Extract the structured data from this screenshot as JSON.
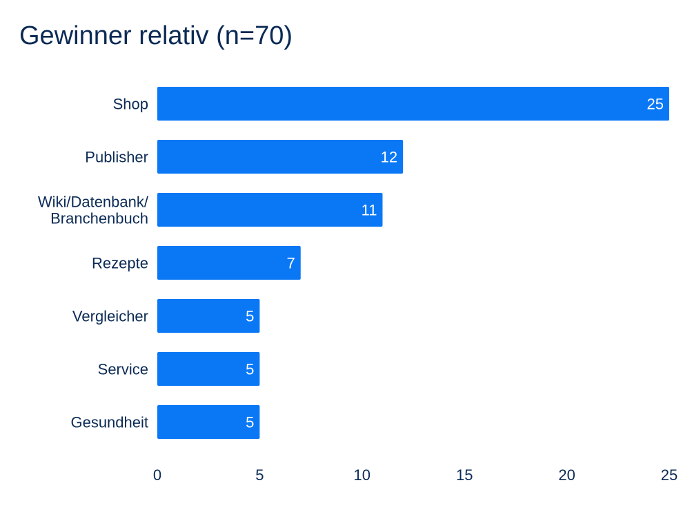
{
  "chart_data": {
    "type": "bar",
    "orientation": "horizontal",
    "title": "Gewinner relativ (n=70)",
    "categories": [
      [
        "Shop"
      ],
      [
        "Publisher"
      ],
      [
        "Wiki/Datenbank/",
        "Branchenbuch"
      ],
      [
        "Rezepte"
      ],
      [
        "Vergleicher"
      ],
      [
        "Service"
      ],
      [
        "Gesundheit"
      ]
    ],
    "values": [
      25,
      12,
      11,
      7,
      5,
      5,
      5
    ],
    "xlim": [
      0,
      25
    ],
    "xticks": [
      0,
      5,
      10,
      15,
      20,
      25
    ],
    "xlabel": "",
    "ylabel": "",
    "grid": false,
    "legend": "none",
    "data_labels": true
  },
  "colors": {
    "bar": "#0a78f5",
    "text": "#0b2a55",
    "value_label": "#ffffff"
  }
}
